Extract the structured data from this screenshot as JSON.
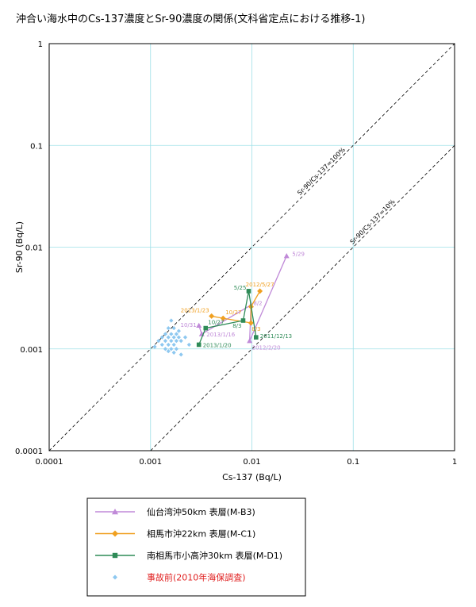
{
  "chart_data": {
    "type": "scatter",
    "title": "沖合い海水中のCs-137濃度とSr-90濃度の関係(文科省定点における推移-1)",
    "xlabel": "Cs-137 (Bq/L)",
    "ylabel": "Sr-90 (Bq/L)",
    "xscale": "log",
    "yscale": "log",
    "xlim": [
      0.0001,
      1
    ],
    "ylim": [
      0.0001,
      1
    ],
    "x_tick_labels": [
      "0.0001",
      "0.001",
      "0.01",
      "0.1",
      "1"
    ],
    "y_tick_labels": [
      "0.0001",
      "0.001",
      "0.01",
      "0.1",
      "1"
    ],
    "grid": true,
    "legend_position": "bottom",
    "reference_lines": [
      {
        "label": "Sr-90/Cs-137=100%",
        "ratio": 1.0
      },
      {
        "label": "Sr-90/Cs-137=10%",
        "ratio": 0.1
      }
    ],
    "series": [
      {
        "name": "仙台湾沖50km 表層(M-B3)",
        "color": "#c08ad8",
        "marker": "triangle",
        "connected": true,
        "points": [
          {
            "x": 0.022,
            "y": 0.0082,
            "label": "5/29"
          },
          {
            "x": 0.0095,
            "y": 0.0012,
            "label": "2012/2/20"
          },
          {
            "x": 0.0098,
            "y": 0.0027,
            "label": "8/2"
          },
          {
            "x": 0.0032,
            "y": 0.0014,
            "label": "2013/1/16"
          },
          {
            "x": 0.003,
            "y": 0.0017,
            "label": "10/31"
          }
        ]
      },
      {
        "name": "相馬市沖22km 表層(M-C1)",
        "color": "#f0a020",
        "marker": "diamond",
        "connected": true,
        "points": [
          {
            "x": 0.012,
            "y": 0.0037,
            "label": "2012/5/27"
          },
          {
            "x": 0.0098,
            "y": 0.0026,
            "label": ""
          },
          {
            "x": 0.0098,
            "y": 0.0018,
            "label": "8/3"
          },
          {
            "x": 0.0052,
            "y": 0.002,
            "label": "10/27"
          },
          {
            "x": 0.004,
            "y": 0.0021,
            "label": "2013/1/23"
          }
        ]
      },
      {
        "name": "南相馬市小高沖30km 表層(M-D1)",
        "color": "#2e8b57",
        "marker": "square",
        "connected": true,
        "points": [
          {
            "x": 0.011,
            "y": 0.0013,
            "label": "2011/12/13"
          },
          {
            "x": 0.0093,
            "y": 0.0037,
            "label": "5/25"
          },
          {
            "x": 0.0082,
            "y": 0.0019,
            "label": "8/3"
          },
          {
            "x": 0.0035,
            "y": 0.0016,
            "label": "10/27"
          },
          {
            "x": 0.003,
            "y": 0.0011,
            "label": "2013/1/20"
          }
        ]
      },
      {
        "name": "事故前(2010年海保調査)",
        "color": "#8ec8f0",
        "marker": "diamond-small",
        "connected": false,
        "points": [
          {
            "x": 0.0016,
            "y": 0.0019
          },
          {
            "x": 0.0015,
            "y": 0.0016
          },
          {
            "x": 0.0017,
            "y": 0.0016
          },
          {
            "x": 0.0019,
            "y": 0.0015
          },
          {
            "x": 0.0014,
            "y": 0.0014
          },
          {
            "x": 0.0016,
            "y": 0.0014
          },
          {
            "x": 0.0018,
            "y": 0.0014
          },
          {
            "x": 0.0013,
            "y": 0.0013
          },
          {
            "x": 0.0015,
            "y": 0.0013
          },
          {
            "x": 0.0017,
            "y": 0.0013
          },
          {
            "x": 0.0019,
            "y": 0.0013
          },
          {
            "x": 0.0022,
            "y": 0.0013
          },
          {
            "x": 0.0012,
            "y": 0.0012
          },
          {
            "x": 0.0014,
            "y": 0.0012
          },
          {
            "x": 0.0016,
            "y": 0.0012
          },
          {
            "x": 0.0018,
            "y": 0.0012
          },
          {
            "x": 0.002,
            "y": 0.0012
          },
          {
            "x": 0.0013,
            "y": 0.0011
          },
          {
            "x": 0.0015,
            "y": 0.0011
          },
          {
            "x": 0.0017,
            "y": 0.0011
          },
          {
            "x": 0.0024,
            "y": 0.0011
          },
          {
            "x": 0.0011,
            "y": 0.00105
          },
          {
            "x": 0.0014,
            "y": 0.001
          },
          {
            "x": 0.0016,
            "y": 0.001
          },
          {
            "x": 0.0018,
            "y": 0.001
          },
          {
            "x": 0.0015,
            "y": 0.00095
          },
          {
            "x": 0.0017,
            "y": 0.00092
          },
          {
            "x": 0.002,
            "y": 0.00088
          }
        ]
      }
    ]
  }
}
